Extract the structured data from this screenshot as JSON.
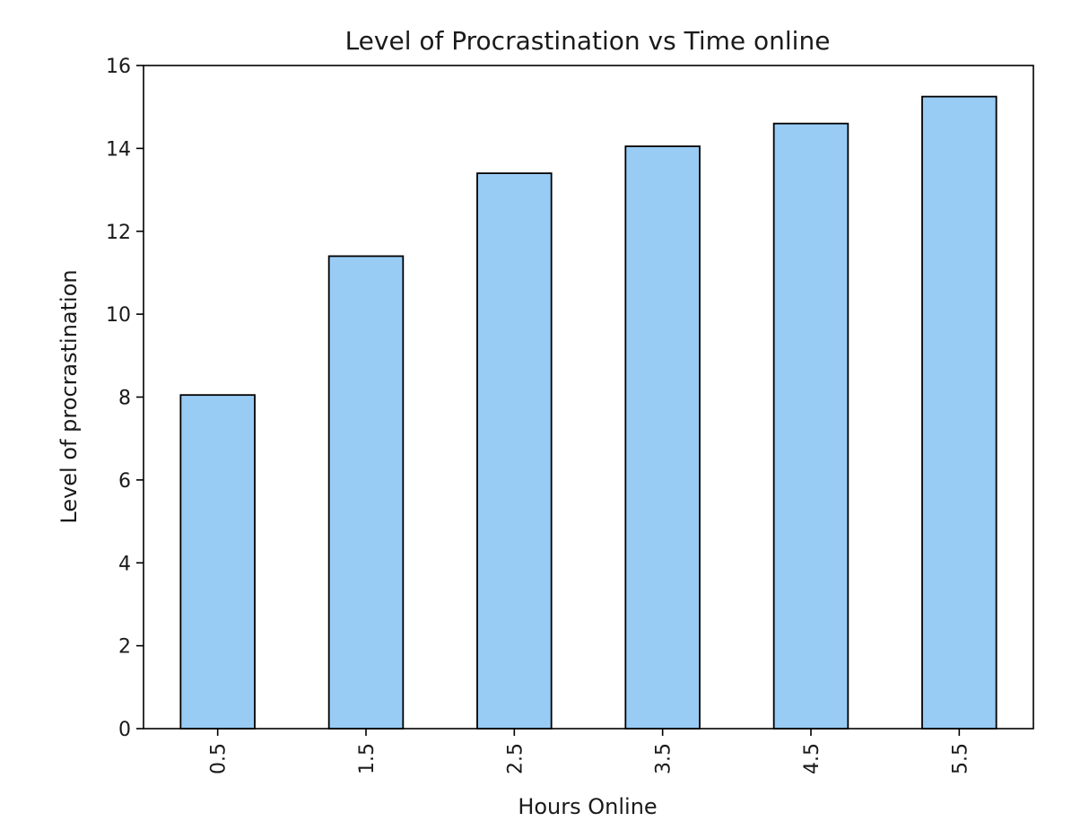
{
  "chart_data": {
    "type": "bar",
    "title": "Level of Procrastination vs Time online",
    "xlabel": "Hours Online",
    "ylabel": "Level of procrastination",
    "categories": [
      "0.5",
      "1.5",
      "2.5",
      "3.5",
      "4.5",
      "5.5"
    ],
    "values": [
      8.05,
      11.4,
      13.4,
      14.05,
      14.6,
      15.25
    ],
    "ylim": [
      0,
      16
    ],
    "yticks": [
      "0",
      "2",
      "4",
      "6",
      "8",
      "10",
      "12",
      "14",
      "16"
    ],
    "grid": false,
    "legend": "none",
    "bar_color": "#99ccf5",
    "edge_color": "#000000"
  }
}
